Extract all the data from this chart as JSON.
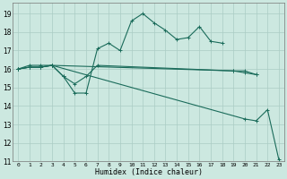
{
  "xlabel": "Humidex (Indice chaleur)",
  "xlim": [
    -0.5,
    23.5
  ],
  "ylim": [
    11,
    19.6
  ],
  "yticks": [
    11,
    12,
    13,
    14,
    15,
    16,
    17,
    18,
    19
  ],
  "xticks": [
    0,
    1,
    2,
    3,
    4,
    5,
    6,
    7,
    8,
    9,
    10,
    11,
    12,
    13,
    14,
    15,
    16,
    17,
    18,
    19,
    20,
    21,
    22,
    23
  ],
  "bg_color": "#cce8e0",
  "grid_color": "#aaccc4",
  "line_color": "#1a6b5a",
  "line1_x": [
    0,
    1,
    2,
    3,
    4,
    5,
    6,
    7,
    8,
    9,
    10,
    11,
    12,
    13,
    14,
    15,
    16,
    17,
    18
  ],
  "line1_y": [
    16.0,
    16.2,
    16.2,
    16.2,
    15.6,
    14.7,
    14.7,
    17.1,
    17.4,
    17.0,
    18.6,
    19.0,
    18.5,
    18.1,
    17.6,
    17.7,
    18.3,
    17.5,
    17.4
  ],
  "line2_x": [
    0,
    1,
    2,
    3,
    19,
    20,
    21
  ],
  "line2_y": [
    16.0,
    16.1,
    16.1,
    16.2,
    15.9,
    15.9,
    15.7
  ],
  "line3_x": [
    0,
    1,
    2,
    3,
    4,
    5,
    6,
    7,
    19,
    20,
    21
  ],
  "line3_y": [
    16.0,
    16.1,
    16.1,
    16.2,
    15.6,
    15.2,
    15.6,
    16.2,
    15.9,
    15.8,
    15.7
  ],
  "line4_x": [
    0,
    1,
    2,
    3,
    20,
    21,
    22,
    23
  ],
  "line4_y": [
    16.0,
    16.1,
    16.1,
    16.2,
    13.3,
    13.2,
    13.8,
    11.1
  ]
}
